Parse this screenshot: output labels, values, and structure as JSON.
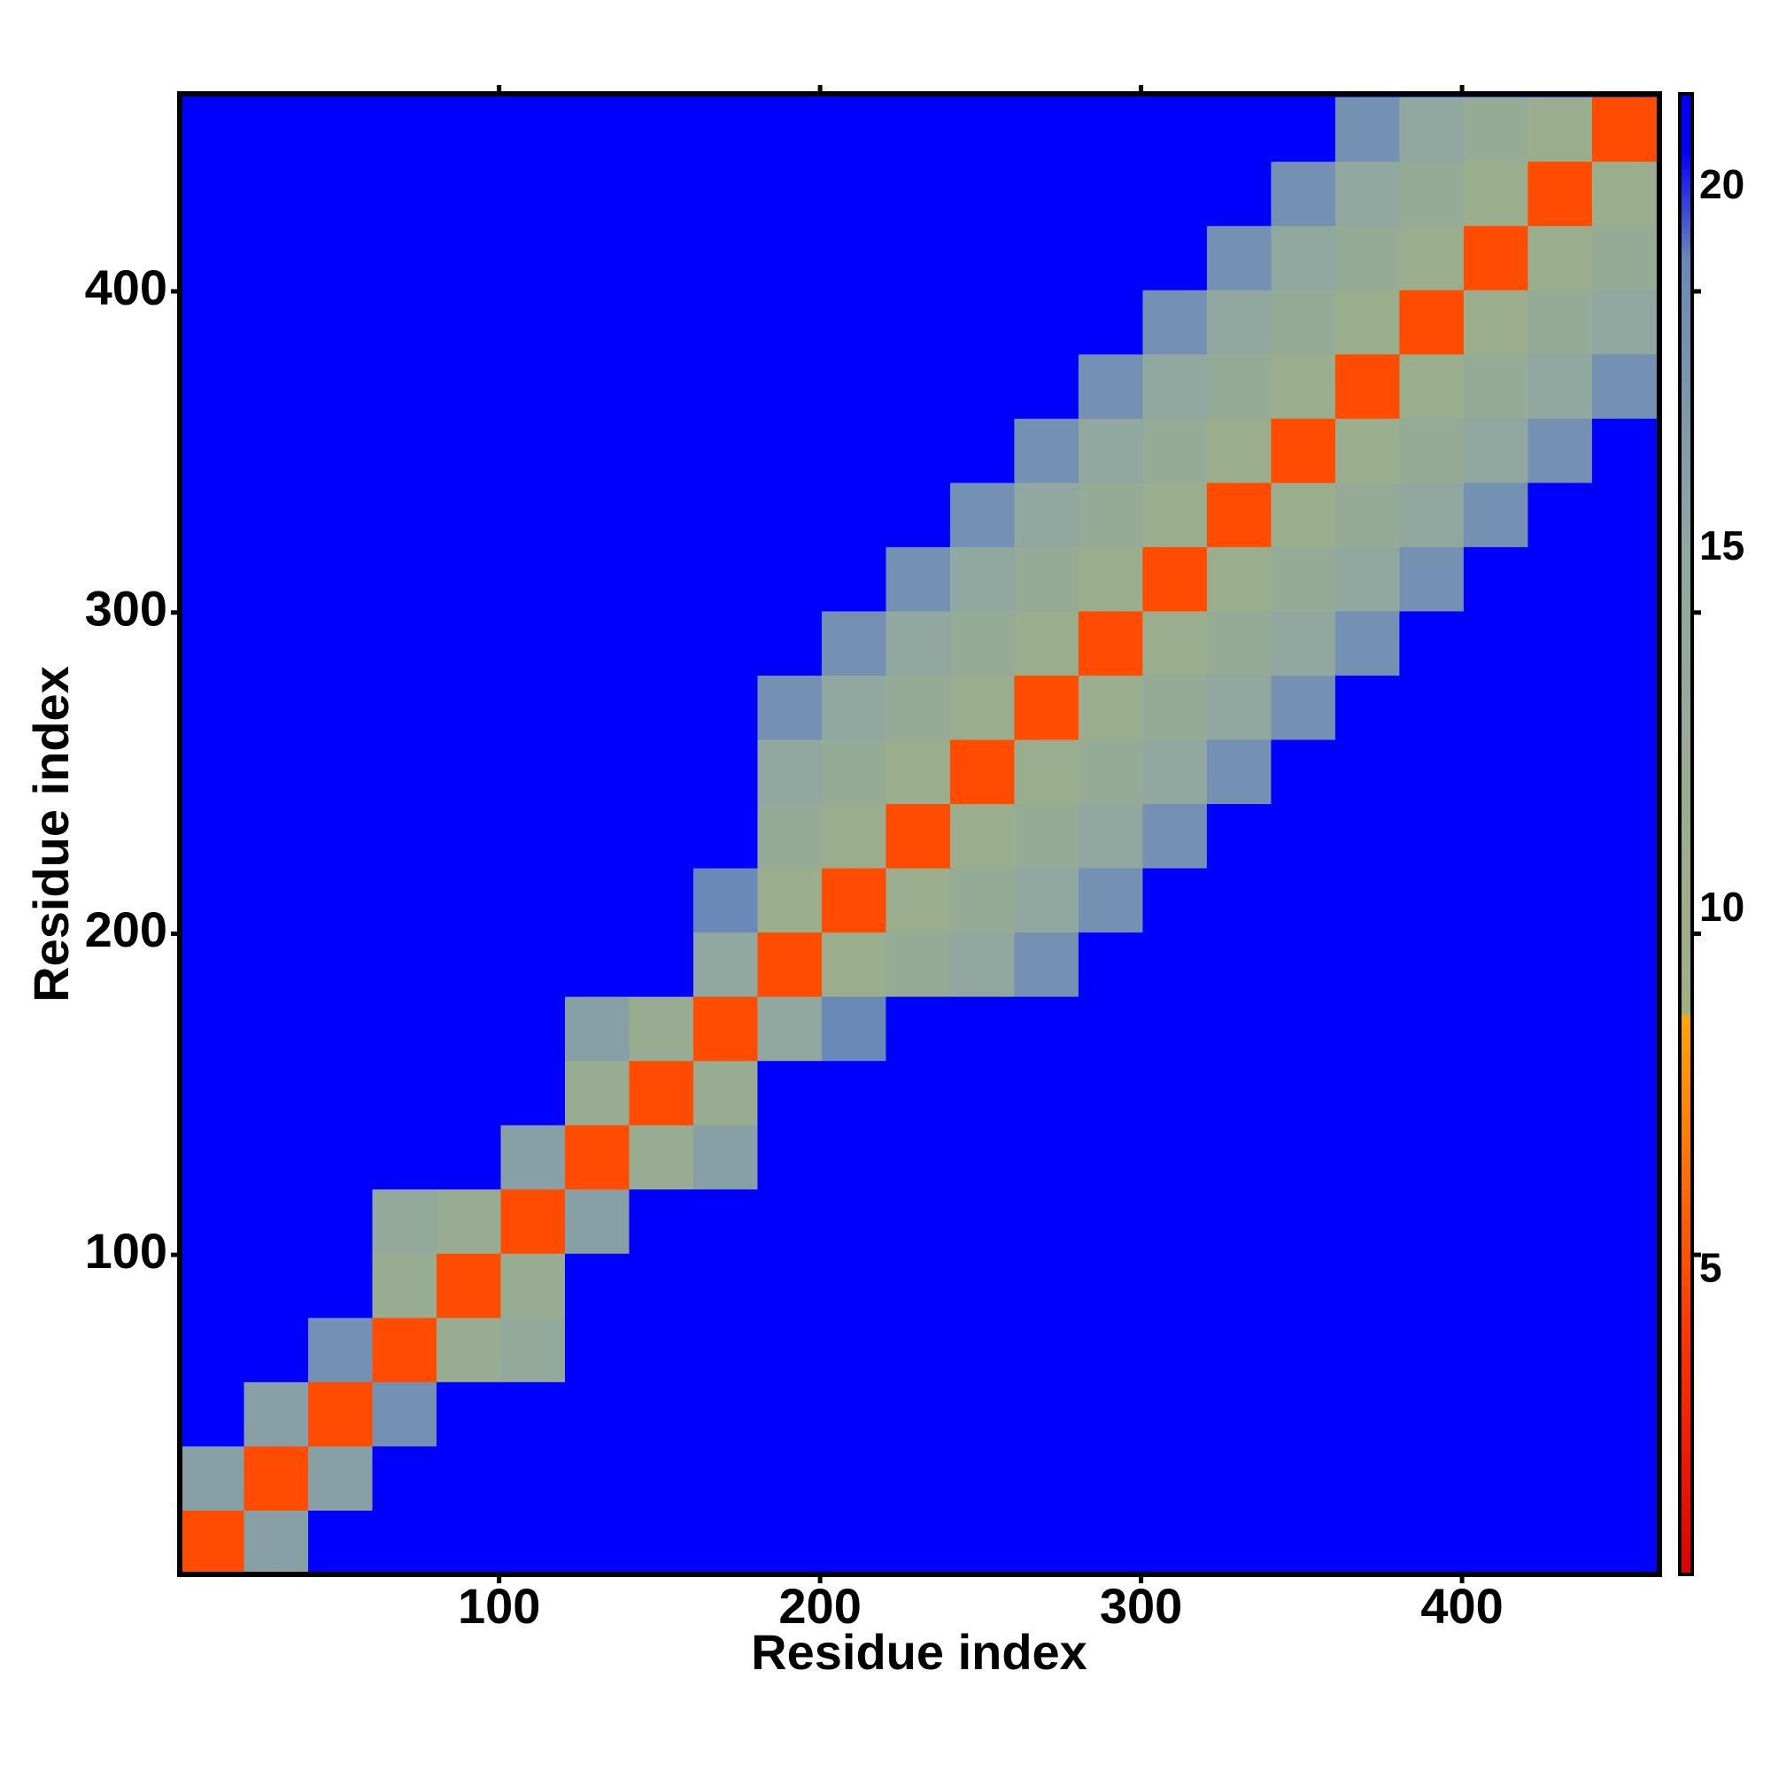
{
  "chart_data": {
    "type": "heatmap",
    "xlabel": "Residue index",
    "ylabel": "Residue index",
    "bins": [
      0.5,
      20.5,
      40.5,
      60.5,
      80.5,
      100.5,
      120.5,
      140.5,
      160.5,
      180.5,
      200.5,
      220.5,
      240.5,
      260.5,
      280.5,
      300.5,
      320.5,
      340.5,
      360.5,
      380.5,
      400.5,
      420.5,
      440.5,
      460.5
    ],
    "xlim": [
      0.5,
      461.5
    ],
    "ylim": [
      0.5,
      461.5
    ],
    "xticks": [
      100,
      200,
      300,
      400
    ],
    "yticks": [
      100,
      200,
      300,
      400
    ],
    "zlim": [
      0.8,
      21.3
    ],
    "zticks": [
      5,
      10,
      15,
      20
    ],
    "colorscale": [
      [
        0.8,
        "#e00000"
      ],
      [
        4,
        "#ff3300"
      ],
      [
        8.5,
        "#ffa500"
      ],
      [
        8.6,
        "#a0b080"
      ],
      [
        15,
        "#90a8a0"
      ],
      [
        19,
        "#6a88b8"
      ],
      [
        20.5,
        "#0000ff"
      ],
      [
        21.3,
        "#0000ff"
      ]
    ],
    "z": [
      [
        5,
        16,
        21,
        21,
        21,
        21,
        21,
        21,
        21,
        21,
        21,
        21,
        21,
        21,
        21,
        21,
        21,
        21,
        21,
        21,
        21,
        21,
        21
      ],
      [
        16,
        5,
        16,
        21,
        21,
        21,
        21,
        21,
        21,
        21,
        21,
        21,
        21,
        21,
        21,
        21,
        21,
        21,
        21,
        21,
        21,
        21,
        21
      ],
      [
        21,
        16,
        5,
        18,
        21,
        21,
        21,
        21,
        21,
        21,
        21,
        21,
        21,
        21,
        21,
        21,
        21,
        21,
        21,
        21,
        21,
        21,
        21
      ],
      [
        21,
        21,
        18,
        5,
        12,
        14,
        21,
        21,
        21,
        21,
        21,
        21,
        21,
        21,
        21,
        21,
        21,
        21,
        21,
        21,
        21,
        21,
        21
      ],
      [
        21,
        21,
        21,
        12,
        5,
        12,
        21,
        21,
        21,
        21,
        21,
        21,
        21,
        21,
        21,
        21,
        21,
        21,
        21,
        21,
        21,
        21,
        21
      ],
      [
        21,
        21,
        21,
        14,
        12,
        5,
        16,
        21,
        21,
        21,
        21,
        21,
        21,
        21,
        21,
        21,
        21,
        21,
        21,
        21,
        21,
        21,
        21
      ],
      [
        21,
        21,
        21,
        21,
        21,
        16,
        5,
        12,
        16,
        21,
        21,
        21,
        21,
        21,
        21,
        21,
        21,
        21,
        21,
        21,
        21,
        21,
        21
      ],
      [
        21,
        21,
        21,
        21,
        21,
        21,
        12,
        5,
        12,
        21,
        21,
        21,
        21,
        21,
        21,
        21,
        21,
        21,
        21,
        21,
        21,
        21,
        21
      ],
      [
        21,
        21,
        21,
        21,
        21,
        21,
        16,
        12,
        5,
        15,
        19,
        21,
        21,
        21,
        21,
        21,
        21,
        21,
        21,
        21,
        21,
        21,
        21
      ],
      [
        21,
        21,
        21,
        21,
        21,
        21,
        21,
        21,
        15,
        5,
        11,
        13,
        15,
        18,
        21,
        21,
        21,
        21,
        21,
        21,
        21,
        21,
        21
      ],
      [
        21,
        21,
        21,
        21,
        21,
        21,
        21,
        21,
        19,
        11,
        5,
        11,
        13,
        15,
        18,
        21,
        21,
        21,
        21,
        21,
        21,
        21,
        21
      ],
      [
        21,
        21,
        21,
        21,
        21,
        21,
        21,
        21,
        21,
        13,
        11,
        5,
        11,
        13,
        15,
        18,
        21,
        21,
        21,
        21,
        21,
        21,
        21
      ],
      [
        21,
        21,
        21,
        21,
        21,
        21,
        21,
        21,
        21,
        15,
        13,
        11,
        5,
        11,
        13,
        15,
        18,
        21,
        21,
        21,
        21,
        21,
        21
      ],
      [
        21,
        21,
        21,
        21,
        21,
        21,
        21,
        21,
        21,
        18,
        15,
        13,
        11,
        5,
        11,
        13,
        15,
        18,
        21,
        21,
        21,
        21,
        21
      ],
      [
        21,
        21,
        21,
        21,
        21,
        21,
        21,
        21,
        21,
        21,
        18,
        15,
        13,
        11,
        5,
        11,
        13,
        15,
        18,
        21,
        21,
        21,
        21
      ],
      [
        21,
        21,
        21,
        21,
        21,
        21,
        21,
        21,
        21,
        21,
        21,
        18,
        15,
        13,
        11,
        5,
        11,
        13,
        15,
        18,
        21,
        21,
        21
      ],
      [
        21,
        21,
        21,
        21,
        21,
        21,
        21,
        21,
        21,
        21,
        21,
        21,
        18,
        15,
        13,
        11,
        5,
        11,
        13,
        15,
        18,
        21,
        21
      ],
      [
        21,
        21,
        21,
        21,
        21,
        21,
        21,
        21,
        21,
        21,
        21,
        21,
        21,
        18,
        15,
        13,
        11,
        5,
        11,
        13,
        15,
        18,
        21
      ],
      [
        21,
        21,
        21,
        21,
        21,
        21,
        21,
        21,
        21,
        21,
        21,
        21,
        21,
        21,
        18,
        15,
        13,
        11,
        5,
        11,
        13,
        15,
        18
      ],
      [
        21,
        21,
        21,
        21,
        21,
        21,
        21,
        21,
        21,
        21,
        21,
        21,
        21,
        21,
        21,
        18,
        15,
        13,
        11,
        5,
        11,
        13,
        15
      ],
      [
        21,
        21,
        21,
        21,
        21,
        21,
        21,
        21,
        21,
        21,
        21,
        21,
        21,
        21,
        21,
        21,
        18,
        15,
        13,
        11,
        5,
        11,
        13
      ],
      [
        21,
        21,
        21,
        21,
        21,
        21,
        21,
        21,
        21,
        21,
        21,
        21,
        21,
        21,
        21,
        21,
        21,
        18,
        15,
        13,
        11,
        5,
        11
      ],
      [
        21,
        21,
        21,
        21,
        21,
        21,
        21,
        21,
        21,
        21,
        21,
        21,
        21,
        21,
        21,
        21,
        21,
        21,
        18,
        15,
        13,
        11,
        5
      ]
    ]
  }
}
